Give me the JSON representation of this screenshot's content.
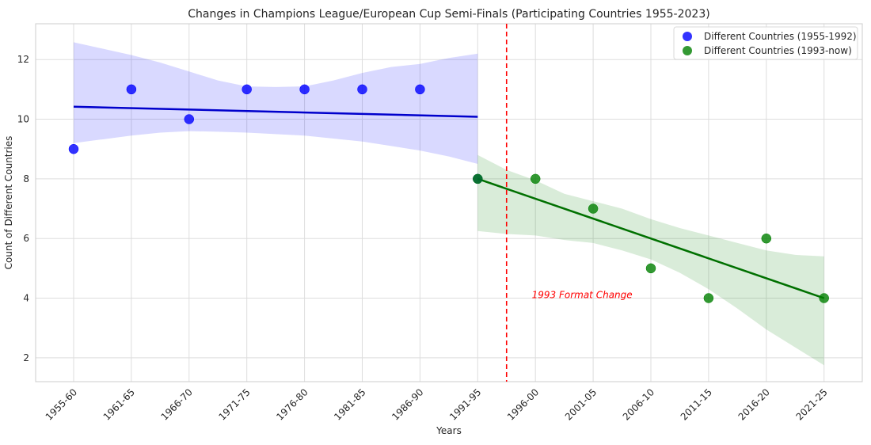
{
  "chart_data": {
    "type": "scatter",
    "title": "Changes in Champions League/European Cup Semi-Finals (Participating Countries 1955-2023)",
    "xlabel": "Years",
    "ylabel": "Count of Different Countries",
    "categories": [
      "1955-60",
      "1961-65",
      "1966-70",
      "1971-75",
      "1976-80",
      "1981-85",
      "1986-90",
      "1991-95",
      "1996-00",
      "2001-05",
      "2006-10",
      "2011-15",
      "2016-20",
      "2021-25"
    ],
    "ylim": [
      1.2,
      13.2
    ],
    "yticks": [
      2,
      4,
      6,
      8,
      10,
      12
    ],
    "grid": true,
    "legend_position": "top-right",
    "series": [
      {
        "name": "Different Countries (1955-1992)",
        "color": "#0000ff",
        "x": [
          0,
          1,
          2,
          3,
          4,
          5,
          6,
          7
        ],
        "values": [
          9,
          11,
          10,
          11,
          11,
          11,
          11,
          8
        ],
        "trend": {
          "x": [
            0,
            7
          ],
          "y": [
            10.42,
            10.08
          ]
        },
        "band": {
          "x": [
            0,
            1,
            1.5,
            2,
            2.5,
            3,
            3.5,
            4,
            4.5,
            5,
            5.5,
            6,
            6.5,
            7
          ],
          "upper": [
            12.58,
            12.15,
            11.9,
            11.6,
            11.3,
            11.1,
            11.08,
            11.1,
            11.3,
            11.55,
            11.75,
            11.85,
            12.05,
            12.2
          ],
          "lower": [
            9.2,
            9.45,
            9.55,
            9.6,
            9.58,
            9.55,
            9.5,
            9.45,
            9.35,
            9.25,
            9.1,
            8.95,
            8.75,
            8.5
          ]
        }
      },
      {
        "name": "Different Countries (1993-now)",
        "color": "#008000",
        "x": [
          7,
          8,
          9,
          10,
          11,
          12,
          13
        ],
        "values": [
          8,
          8,
          7,
          5,
          4,
          6,
          4
        ],
        "trend": {
          "x": [
            7,
            13
          ],
          "y": [
            8.0,
            4.0
          ]
        },
        "band": {
          "x": [
            7,
            7.5,
            8,
            8.5,
            9,
            9.5,
            10,
            10.5,
            11,
            11.5,
            12,
            12.5,
            13
          ],
          "upper": [
            8.8,
            8.3,
            7.95,
            7.5,
            7.25,
            7.0,
            6.65,
            6.35,
            6.1,
            5.85,
            5.6,
            5.45,
            5.4
          ],
          "lower": [
            6.25,
            6.15,
            6.1,
            5.95,
            5.85,
            5.6,
            5.3,
            4.85,
            4.3,
            3.65,
            2.95,
            2.35,
            1.75
          ]
        }
      }
    ],
    "vline": {
      "x": 7.5,
      "color": "#ff0000"
    },
    "annotation": {
      "text": "1993 Format Change",
      "x": 7.8,
      "y": 4.0,
      "color": "#ff0000"
    }
  }
}
